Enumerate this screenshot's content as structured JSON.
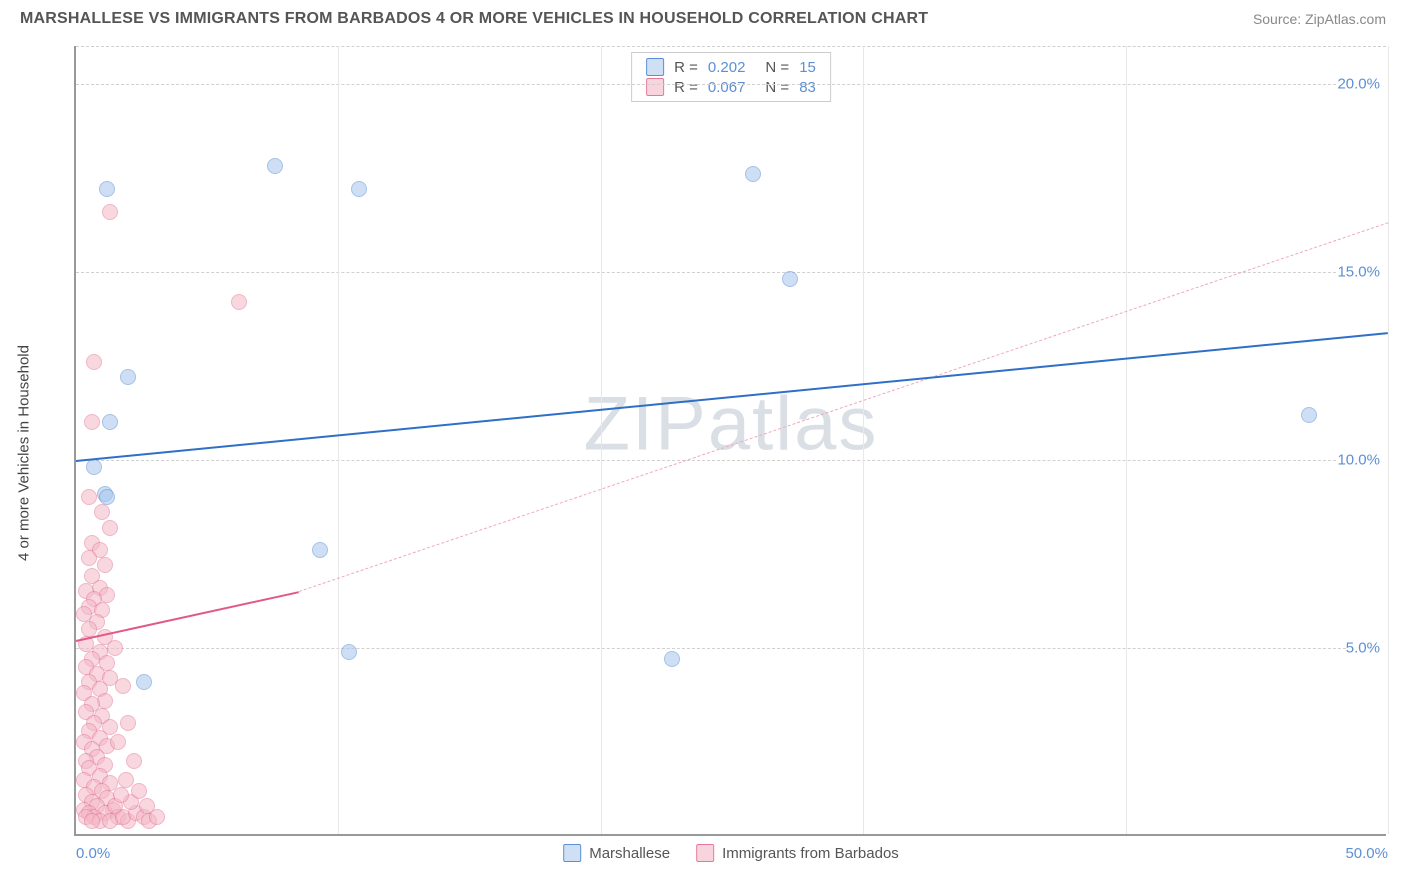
{
  "title": "MARSHALLESE VS IMMIGRANTS FROM BARBADOS 4 OR MORE VEHICLES IN HOUSEHOLD CORRELATION CHART",
  "source": "Source: ZipAtlas.com",
  "watermark": "ZIPatlas",
  "y_axis_title": "4 or more Vehicles in Household",
  "chart": {
    "type": "scatter",
    "xlim": [
      0,
      50
    ],
    "ylim": [
      0,
      21
    ],
    "x_ticks": [
      0,
      50
    ],
    "x_tick_labels": [
      "0.0%",
      "50.0%"
    ],
    "y_ticks": [
      5,
      10,
      15,
      20
    ],
    "y_tick_labels": [
      "5.0%",
      "10.0%",
      "15.0%",
      "20.0%"
    ],
    "x_minor_grid": [
      10,
      20,
      30,
      40,
      50
    ],
    "background_color": "#ffffff",
    "grid_color": "#d8d8d8",
    "marker_radius": 8,
    "marker_opacity": 0.55
  },
  "series": [
    {
      "name": "Marshallese",
      "key": "marshallese",
      "color_fill": "#a7c6ed",
      "color_stroke": "#5b8fd6",
      "swatch_fill": "#cfe0f5",
      "R": "0.202",
      "N": "15",
      "trend_solid": {
        "x1": 0,
        "y1": 10.0,
        "x2": 50,
        "y2": 13.4,
        "color": "#2f6fc7"
      },
      "trend_dashed": null,
      "points": [
        {
          "x": 1.2,
          "y": 17.2
        },
        {
          "x": 7.6,
          "y": 17.8
        },
        {
          "x": 10.8,
          "y": 17.2
        },
        {
          "x": 25.8,
          "y": 17.6
        },
        {
          "x": 27.2,
          "y": 14.8
        },
        {
          "x": 47.0,
          "y": 11.2
        },
        {
          "x": 2.0,
          "y": 12.2
        },
        {
          "x": 1.3,
          "y": 11.0
        },
        {
          "x": 0.7,
          "y": 9.8
        },
        {
          "x": 1.1,
          "y": 9.1
        },
        {
          "x": 1.2,
          "y": 9.0
        },
        {
          "x": 9.3,
          "y": 7.6
        },
        {
          "x": 10.4,
          "y": 4.9
        },
        {
          "x": 22.7,
          "y": 4.7
        },
        {
          "x": 2.6,
          "y": 4.1
        }
      ]
    },
    {
      "name": "Immigrants from Barbados",
      "key": "barbados",
      "color_fill": "#f4b8c6",
      "color_stroke": "#e47a9a",
      "swatch_fill": "#f8d5de",
      "R": "0.067",
      "N": "83",
      "trend_solid": {
        "x1": 0,
        "y1": 5.2,
        "x2": 8.5,
        "y2": 6.5,
        "color": "#e05a86"
      },
      "trend_dashed": {
        "x1": 8.5,
        "y1": 6.5,
        "x2": 50,
        "y2": 16.3,
        "color": "#f0a8bc"
      },
      "points": [
        {
          "x": 1.3,
          "y": 16.6
        },
        {
          "x": 6.2,
          "y": 14.2
        },
        {
          "x": 0.7,
          "y": 12.6
        },
        {
          "x": 0.6,
          "y": 11.0
        },
        {
          "x": 0.5,
          "y": 9.0
        },
        {
          "x": 1.0,
          "y": 8.6
        },
        {
          "x": 1.3,
          "y": 8.2
        },
        {
          "x": 0.6,
          "y": 7.8
        },
        {
          "x": 0.9,
          "y": 7.6
        },
        {
          "x": 0.5,
          "y": 7.4
        },
        {
          "x": 1.1,
          "y": 7.2
        },
        {
          "x": 0.6,
          "y": 6.9
        },
        {
          "x": 0.9,
          "y": 6.6
        },
        {
          "x": 0.4,
          "y": 6.5
        },
        {
          "x": 1.2,
          "y": 6.4
        },
        {
          "x": 0.7,
          "y": 6.3
        },
        {
          "x": 0.5,
          "y": 6.1
        },
        {
          "x": 1.0,
          "y": 6.0
        },
        {
          "x": 0.3,
          "y": 5.9
        },
        {
          "x": 0.8,
          "y": 5.7
        },
        {
          "x": 0.5,
          "y": 5.5
        },
        {
          "x": 1.1,
          "y": 5.3
        },
        {
          "x": 0.4,
          "y": 5.1
        },
        {
          "x": 0.9,
          "y": 4.9
        },
        {
          "x": 0.6,
          "y": 4.7
        },
        {
          "x": 1.2,
          "y": 4.6
        },
        {
          "x": 0.4,
          "y": 4.5
        },
        {
          "x": 0.8,
          "y": 4.3
        },
        {
          "x": 1.3,
          "y": 4.2
        },
        {
          "x": 0.5,
          "y": 4.1
        },
        {
          "x": 0.9,
          "y": 3.9
        },
        {
          "x": 0.3,
          "y": 3.8
        },
        {
          "x": 1.1,
          "y": 3.6
        },
        {
          "x": 0.6,
          "y": 3.5
        },
        {
          "x": 0.4,
          "y": 3.3
        },
        {
          "x": 1.0,
          "y": 3.2
        },
        {
          "x": 0.7,
          "y": 3.0
        },
        {
          "x": 1.3,
          "y": 2.9
        },
        {
          "x": 0.5,
          "y": 2.8
        },
        {
          "x": 0.9,
          "y": 2.6
        },
        {
          "x": 0.3,
          "y": 2.5
        },
        {
          "x": 1.2,
          "y": 2.4
        },
        {
          "x": 0.6,
          "y": 2.3
        },
        {
          "x": 0.8,
          "y": 2.1
        },
        {
          "x": 0.4,
          "y": 2.0
        },
        {
          "x": 1.1,
          "y": 1.9
        },
        {
          "x": 0.5,
          "y": 1.8
        },
        {
          "x": 0.9,
          "y": 1.6
        },
        {
          "x": 0.3,
          "y": 1.5
        },
        {
          "x": 1.3,
          "y": 1.4
        },
        {
          "x": 0.7,
          "y": 1.3
        },
        {
          "x": 1.0,
          "y": 1.2
        },
        {
          "x": 0.4,
          "y": 1.1
        },
        {
          "x": 1.2,
          "y": 1.0
        },
        {
          "x": 0.6,
          "y": 0.9
        },
        {
          "x": 0.8,
          "y": 0.8
        },
        {
          "x": 0.3,
          "y": 0.7
        },
        {
          "x": 1.4,
          "y": 0.7
        },
        {
          "x": 0.5,
          "y": 0.6
        },
        {
          "x": 1.1,
          "y": 0.6
        },
        {
          "x": 0.7,
          "y": 0.5
        },
        {
          "x": 1.6,
          "y": 0.5
        },
        {
          "x": 0.4,
          "y": 0.5
        },
        {
          "x": 0.9,
          "y": 0.4
        },
        {
          "x": 1.3,
          "y": 0.4
        },
        {
          "x": 2.0,
          "y": 0.4
        },
        {
          "x": 0.6,
          "y": 0.4
        },
        {
          "x": 1.8,
          "y": 0.5
        },
        {
          "x": 2.3,
          "y": 0.6
        },
        {
          "x": 2.6,
          "y": 0.5
        },
        {
          "x": 1.5,
          "y": 0.8
        },
        {
          "x": 2.1,
          "y": 0.9
        },
        {
          "x": 2.8,
          "y": 0.4
        },
        {
          "x": 3.1,
          "y": 0.5
        },
        {
          "x": 1.7,
          "y": 1.1
        },
        {
          "x": 2.4,
          "y": 1.2
        },
        {
          "x": 1.9,
          "y": 1.5
        },
        {
          "x": 2.2,
          "y": 2.0
        },
        {
          "x": 1.6,
          "y": 2.5
        },
        {
          "x": 2.0,
          "y": 3.0
        },
        {
          "x": 1.8,
          "y": 4.0
        },
        {
          "x": 1.5,
          "y": 5.0
        },
        {
          "x": 2.7,
          "y": 0.8
        }
      ]
    }
  ]
}
